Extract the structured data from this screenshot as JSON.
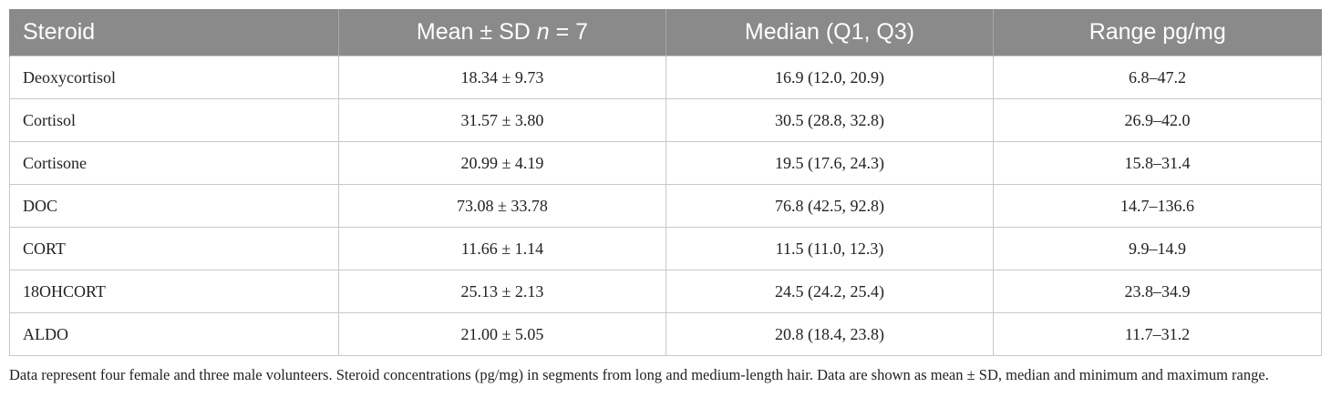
{
  "table": {
    "headers": [
      {
        "pre": "Steroid",
        "italic": "",
        "post": ""
      },
      {
        "pre": "Mean ± SD ",
        "italic": "n",
        "post": " = 7"
      },
      {
        "pre": "Median (Q1, Q3)",
        "italic": "",
        "post": ""
      },
      {
        "pre": "Range pg/mg",
        "italic": "",
        "post": ""
      }
    ],
    "rows": [
      [
        "Deoxycortisol",
        "18.34 ± 9.73",
        "16.9 (12.0, 20.9)",
        "6.8–47.2"
      ],
      [
        "Cortisol",
        "31.57 ± 3.80",
        "30.5 (28.8, 32.8)",
        "26.9–42.0"
      ],
      [
        "Cortisone",
        "20.99 ± 4.19",
        "19.5 (17.6, 24.3)",
        "15.8–31.4"
      ],
      [
        "DOC",
        "73.08 ± 33.78",
        "76.8 (42.5, 92.8)",
        "14.7–136.6"
      ],
      [
        "CORT",
        "11.66 ± 1.14",
        "11.5 (11.0, 12.3)",
        "9.9–14.9"
      ],
      [
        "18OHCORT",
        "25.13 ± 2.13",
        "24.5 (24.2, 25.4)",
        "23.8–34.9"
      ],
      [
        "ALDO",
        "21.00 ± 5.05",
        "20.8 (18.4, 23.8)",
        "11.7–31.2"
      ]
    ]
  },
  "footnote": "Data represent four female and three male volunteers. Steroid concentrations (pg/mg) in segments from long and medium-length hair. Data are shown as mean ± SD, median and minimum and maximum range.",
  "colors": {
    "header_background": "#8a8a8a",
    "header_text": "#ffffff",
    "grid_lines": "#c8c8c8"
  }
}
